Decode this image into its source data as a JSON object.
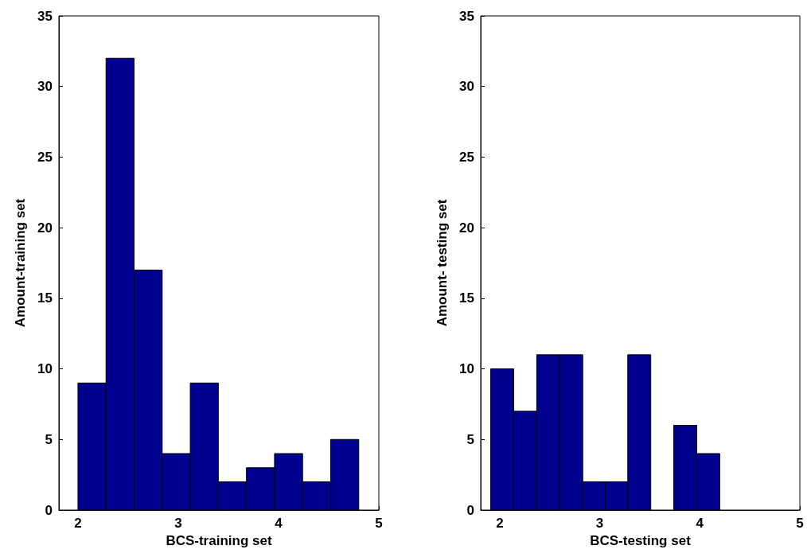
{
  "chart_data": [
    {
      "type": "histogram",
      "xlabel": "BCS-training set",
      "ylabel": "Amount-training set",
      "bins": [
        2,
        2.28,
        2.56,
        2.84,
        3.12,
        3.4,
        3.68,
        3.96,
        4.24,
        4.52,
        4.8
      ],
      "values": [
        9,
        32,
        17,
        4,
        9,
        2,
        3,
        4,
        2,
        5
      ],
      "color": "#00008f",
      "xlim": [
        1.81,
        5
      ],
      "xticks": [
        2,
        3,
        4,
        5
      ],
      "ylim": [
        0,
        35
      ],
      "yticks": [
        0,
        5,
        10,
        15,
        20,
        25,
        30,
        35
      ],
      "grid": false
    },
    {
      "type": "histogram",
      "xlabel": "BCS-testing set",
      "ylabel": "Amount- testing set",
      "bins": [
        1.91,
        2.14,
        2.37,
        2.6,
        2.83,
        3.06,
        3.28,
        3.51,
        3.74,
        3.97,
        4.2
      ],
      "values": [
        10,
        7,
        11,
        11,
        2,
        2,
        11,
        0,
        6,
        4
      ],
      "color": "#00008f",
      "xlim": [
        1.81,
        5
      ],
      "xticks": [
        2,
        3,
        4,
        5
      ],
      "ylim": [
        0,
        35
      ],
      "yticks": [
        0,
        5,
        10,
        15,
        20,
        25,
        30,
        35
      ],
      "grid": false
    }
  ]
}
